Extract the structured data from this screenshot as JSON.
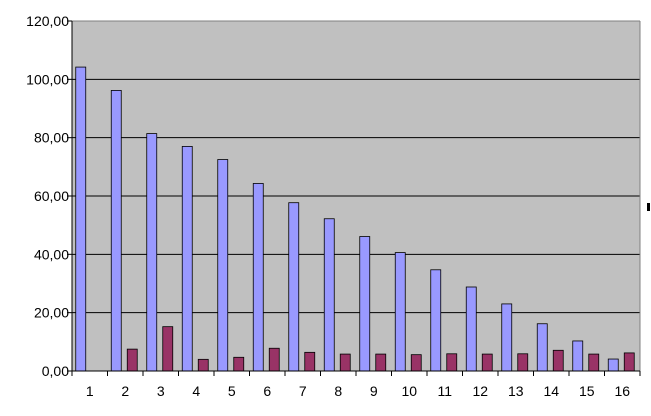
{
  "chart_data": {
    "type": "bar",
    "title": "",
    "xlabel": "",
    "ylabel": "",
    "categories": [
      "1",
      "2",
      "3",
      "4",
      "5",
      "6",
      "7",
      "8",
      "9",
      "10",
      "11",
      "12",
      "13",
      "14",
      "15",
      "16"
    ],
    "series": [
      {
        "values": [
          104.2,
          96.2,
          81.4,
          77.0,
          72.5,
          64.3,
          57.7,
          52.2,
          46.1,
          40.6,
          34.7,
          28.8,
          23.0,
          16.2,
          10.3,
          4.1
        ],
        "color": "#9999ff"
      },
      {
        "values": [
          0,
          7.5,
          15.2,
          4.0,
          4.7,
          7.8,
          6.4,
          5.8,
          5.8,
          5.6,
          5.9,
          5.8,
          5.9,
          7.1,
          5.8,
          6.2
        ],
        "color": "#993366"
      }
    ],
    "ylim": [
      0,
      120
    ],
    "y_ticks": [
      0,
      20,
      40,
      60,
      80,
      100,
      120
    ],
    "y_tick_labels": [
      "0,00",
      "20,00",
      "40,00",
      "60,00",
      "80,00",
      "100,00",
      "120,00"
    ],
    "grid": true,
    "legend": "none",
    "plot_background": "#c0c0c0",
    "gridline_color": "#000000"
  }
}
